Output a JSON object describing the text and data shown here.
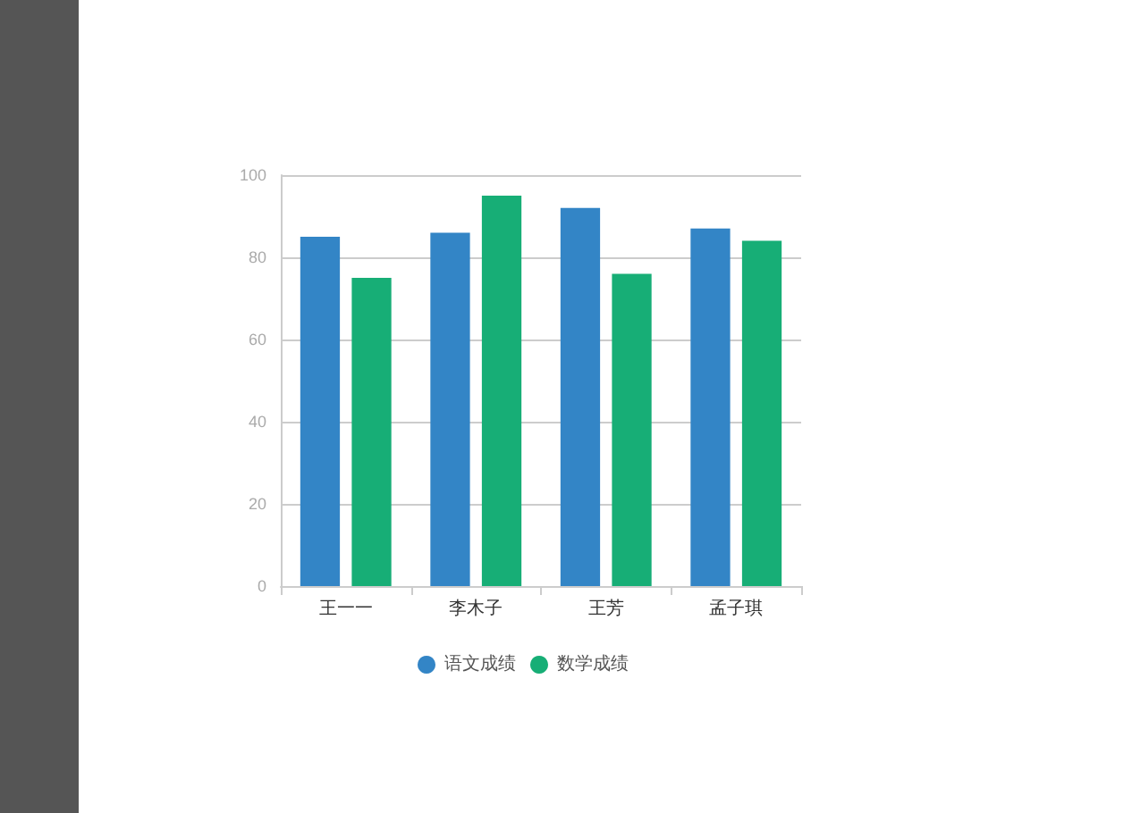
{
  "chart_data": {
    "type": "bar",
    "categories": [
      "王一一",
      "李木子",
      "王芳",
      "孟子琪"
    ],
    "series": [
      {
        "name": "语文成绩",
        "color": "#3385c6",
        "values": [
          85,
          86,
          92,
          87
        ]
      },
      {
        "name": "数学成绩",
        "color": "#17ae76",
        "values": [
          75,
          95,
          76,
          84
        ]
      }
    ],
    "ylim": [
      0,
      100
    ],
    "yticks": [
      0,
      20,
      40,
      60,
      80,
      100
    ],
    "grid": "y",
    "legend": "bottom"
  }
}
